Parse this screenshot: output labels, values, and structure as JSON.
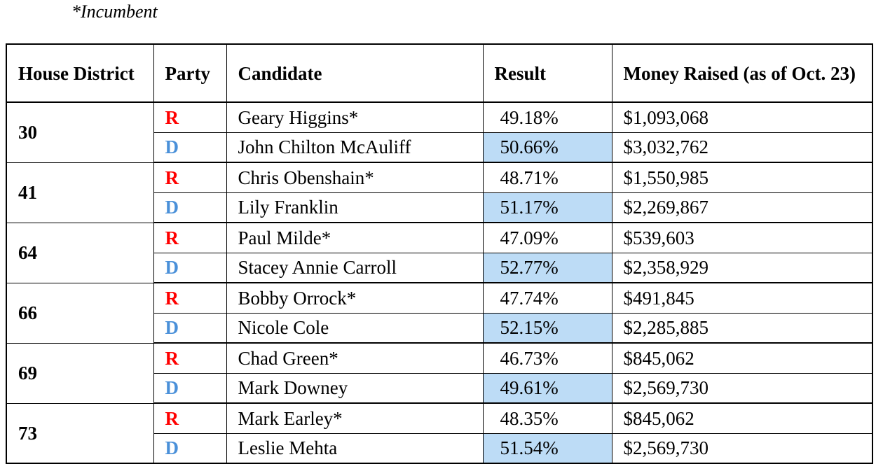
{
  "note": "*Incumbent",
  "headers": {
    "district": "House District",
    "party": "Party",
    "candidate": "Candidate",
    "result": "Result",
    "money": "Money Raised (as of Oct. 23)"
  },
  "colors": {
    "R": "#ff0000",
    "D": "#4a90d9",
    "winner_highlight": "#bddcf6"
  },
  "districts": [
    {
      "district": "30",
      "rows": [
        {
          "party": "R",
          "candidate": "Geary Higgins*",
          "result": "49.18%",
          "money": "$1,093,068",
          "winner": false
        },
        {
          "party": "D",
          "candidate": "John Chilton McAuliff",
          "result": "50.66%",
          "money": "$3,032,762",
          "winner": true
        }
      ]
    },
    {
      "district": "41",
      "rows": [
        {
          "party": "R",
          "candidate": "Chris Obenshain*",
          "result": "48.71%",
          "money": "$1,550,985",
          "winner": false
        },
        {
          "party": "D",
          "candidate": "Lily Franklin",
          "result": "51.17%",
          "money": "$2,269,867",
          "winner": true
        }
      ]
    },
    {
      "district": "64",
      "rows": [
        {
          "party": "R",
          "candidate": "Paul Milde*",
          "result": "47.09%",
          "money": "$539,603",
          "winner": false
        },
        {
          "party": "D",
          "candidate": "Stacey Annie Carroll",
          "result": "52.77%",
          "money": "$2,358,929",
          "winner": true
        }
      ]
    },
    {
      "district": "66",
      "rows": [
        {
          "party": "R",
          "candidate": "Bobby Orrock*",
          "result": "47.74%",
          "money": "$491,845",
          "winner": false
        },
        {
          "party": "D",
          "candidate": "Nicole Cole",
          "result": "52.15%",
          "money": "$2,285,885",
          "winner": true
        }
      ]
    },
    {
      "district": "69",
      "rows": [
        {
          "party": "R",
          "candidate": "Chad Green*",
          "result": "46.73%",
          "money": "$845,062",
          "winner": false
        },
        {
          "party": "D",
          "candidate": "Mark Downey",
          "result": "49.61%",
          "money": "$2,569,730",
          "winner": true
        }
      ]
    },
    {
      "district": "73",
      "rows": [
        {
          "party": "R",
          "candidate": "Mark Earley*",
          "result": "48.35%",
          "money": "$845,062",
          "winner": false
        },
        {
          "party": "D",
          "candidate": "Leslie Mehta",
          "result": "51.54%",
          "money": "$2,569,730",
          "winner": true
        }
      ]
    }
  ]
}
